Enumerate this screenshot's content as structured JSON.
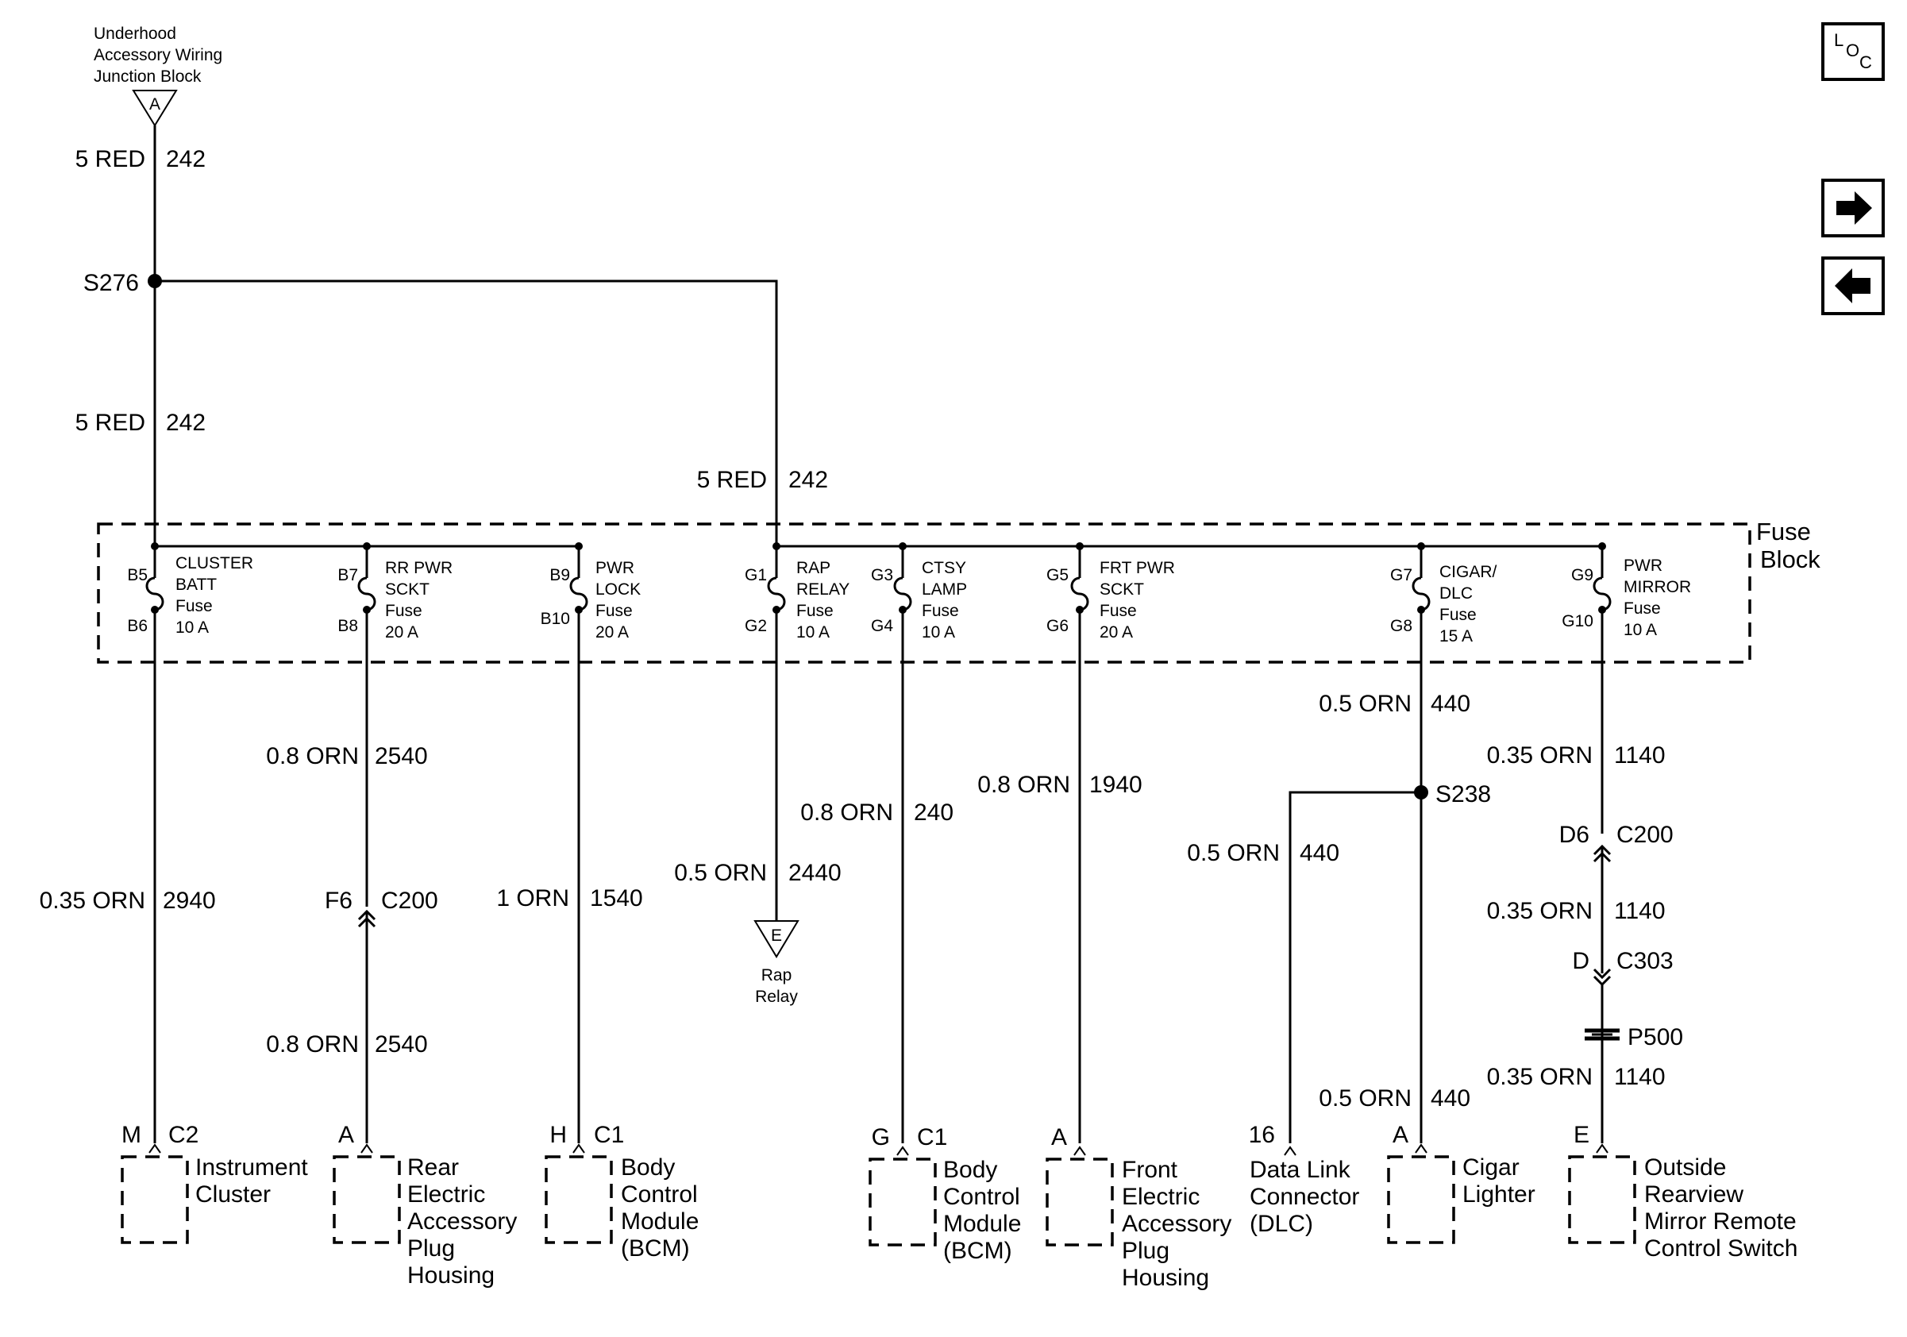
{
  "source": {
    "line1": "Underhood",
    "line2": "Accessory Wiring",
    "line3": "Junction Block",
    "terminal": "A"
  },
  "splices": {
    "s276": "S276",
    "s238": "S238"
  },
  "wires": {
    "top_gauge": "5 RED",
    "top_circuit": "242",
    "mid_gauge": "5 RED",
    "mid_circuit": "242",
    "relay_feed_gauge": "5 RED",
    "relay_feed_circuit": "242",
    "cluster_gauge": "0.35 ORN",
    "cluster_circuit": "2940",
    "rr_gauge_top": "0.8 ORN",
    "rr_circuit_top": "2540",
    "rr_gauge_bot": "0.8 ORN",
    "rr_circuit_bot": "2540",
    "pwrlock_gauge": "1 ORN",
    "pwrlock_circuit": "1540",
    "rap_gauge": "0.5 ORN",
    "rap_circuit": "2440",
    "ctsy_gauge": "0.8 ORN",
    "ctsy_circuit": "240",
    "frt_gauge": "0.8 ORN",
    "frt_circuit": "1940",
    "cigar_gauge_top": "0.5 ORN",
    "cigar_circuit_top": "440",
    "dlc_gauge": "0.5 ORN",
    "dlc_circuit": "440",
    "cigar_gauge_bot": "0.5 ORN",
    "cigar_circuit_bot": "440",
    "mirror_gauge_1": "0.35 ORN",
    "mirror_circuit_1": "1140",
    "mirror_gauge_2": "0.35 ORN",
    "mirror_circuit_2": "1140",
    "mirror_gauge_3": "0.35 ORN",
    "mirror_circuit_3": "1140"
  },
  "fuse_block": {
    "label_1": "Fuse",
    "label_2": "Block",
    "fuses": [
      {
        "pin_top": "B5",
        "pin_bot": "B6",
        "name1": "CLUSTER",
        "name2": "BATT",
        "name3": "Fuse",
        "rating": "10 A"
      },
      {
        "pin_top": "B7",
        "pin_bot": "B8",
        "name1": "RR PWR",
        "name2": "SCKT",
        "name3": "Fuse",
        "rating": "20 A"
      },
      {
        "pin_top": "B9",
        "pin_bot": "B10",
        "name1": "PWR",
        "name2": "LOCK",
        "name3": "Fuse",
        "rating": "20 A"
      },
      {
        "pin_top": "G1",
        "pin_bot": "G2",
        "name1": "RAP",
        "name2": "RELAY",
        "name3": "Fuse",
        "rating": "10 A"
      },
      {
        "pin_top": "G3",
        "pin_bot": "G4",
        "name1": "CTSY",
        "name2": "LAMP",
        "name3": "Fuse",
        "rating": "10 A"
      },
      {
        "pin_top": "G5",
        "pin_bot": "G6",
        "name1": "FRT PWR",
        "name2": "SCKT",
        "name3": "Fuse",
        "rating": "20 A"
      },
      {
        "pin_top": "G7",
        "pin_bot": "G8",
        "name1": "CIGAR/",
        "name2": "DLC",
        "name3": "Fuse",
        "rating": "15 A"
      },
      {
        "pin_top": "G9",
        "pin_bot": "G10",
        "name1": "PWR",
        "name2": "MIRROR",
        "name3": "Fuse",
        "rating": "10 A"
      }
    ]
  },
  "inline_connectors": {
    "c200_rr_pin": "F6",
    "c200_rr_name": "C200",
    "c200_mirror_pin": "D6",
    "c200_mirror_name": "C200",
    "c303_pin": "D",
    "c303_name": "C303",
    "p500": "P500"
  },
  "rap_relay": {
    "terminal": "E",
    "line1": "Rap",
    "line2": "Relay"
  },
  "components": [
    {
      "pin": "M",
      "conn": "C2",
      "lines": [
        "Instrument",
        "Cluster"
      ]
    },
    {
      "pin": "A",
      "conn": "",
      "lines": [
        "Rear",
        "Electric",
        "Accessory",
        "Plug",
        "Housing"
      ]
    },
    {
      "pin": "H",
      "conn": "C1",
      "lines": [
        "Body",
        "Control",
        "Module",
        "(BCM)"
      ]
    },
    {
      "pin": "G",
      "conn": "C1",
      "lines": [
        "Body",
        "Control",
        "Module",
        "(BCM)"
      ]
    },
    {
      "pin": "A",
      "conn": "",
      "lines": [
        "Front",
        "Electric",
        "Accessory",
        "Plug",
        "Housing"
      ]
    },
    {
      "pin": "16",
      "conn": "",
      "lines": [
        "Data Link",
        "Connector",
        "(DLC)"
      ]
    },
    {
      "pin": "A",
      "conn": "",
      "lines": [
        "Cigar",
        "Lighter"
      ]
    },
    {
      "pin": "E",
      "conn": "",
      "lines": [
        "Outside",
        "Rearview",
        "Mirror Remote",
        "Control Switch"
      ]
    }
  ],
  "nav": {
    "loc_l": "L",
    "loc_o": "O",
    "loc_c": "C",
    "forward_icon": "arrow-right-icon",
    "back_icon": "arrow-left-icon"
  }
}
